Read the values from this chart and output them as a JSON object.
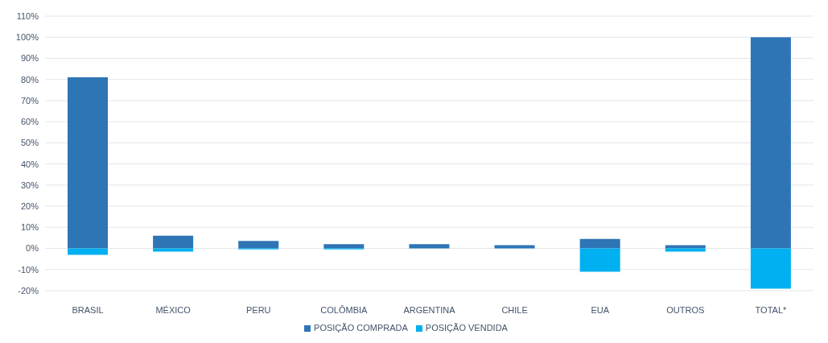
{
  "chart_data": {
    "type": "bar",
    "stacked": true,
    "categories": [
      "BRASIL",
      "MÉXICO",
      "PERU",
      "COLÔMBIA",
      "ARGENTINA",
      "CHILE",
      "EUA",
      "OUTROS",
      "TOTAL*"
    ],
    "series": [
      {
        "name": "POSIÇÃO COMPRADA",
        "color": "#2e75b6",
        "values": [
          81,
          6,
          3.5,
          2,
          2,
          1.5,
          4.5,
          1.5,
          100
        ]
      },
      {
        "name": "POSIÇÃO VENDIDA",
        "color": "#00b0f0",
        "values": [
          -3,
          -1.5,
          -0.5,
          -0.5,
          0,
          0,
          -11,
          -1.5,
          -19
        ]
      }
    ],
    "ylim": [
      -20,
      110
    ],
    "yticks": [
      {
        "value": -20,
        "label": "-20%"
      },
      {
        "value": -10,
        "label": "-10%"
      },
      {
        "value": 0,
        "label": "0%"
      },
      {
        "value": 10,
        "label": "10%"
      },
      {
        "value": 20,
        "label": "20%"
      },
      {
        "value": 30,
        "label": "30%"
      },
      {
        "value": 40,
        "label": "40%"
      },
      {
        "value": 50,
        "label": "50%"
      },
      {
        "value": 60,
        "label": "60%"
      },
      {
        "value": 70,
        "label": "70%"
      },
      {
        "value": 80,
        "label": "80%"
      },
      {
        "value": 90,
        "label": "90%"
      },
      {
        "value": 100,
        "label": "100%"
      },
      {
        "value": 110,
        "label": "110%"
      }
    ],
    "grid": "y",
    "legend": "bottom"
  }
}
